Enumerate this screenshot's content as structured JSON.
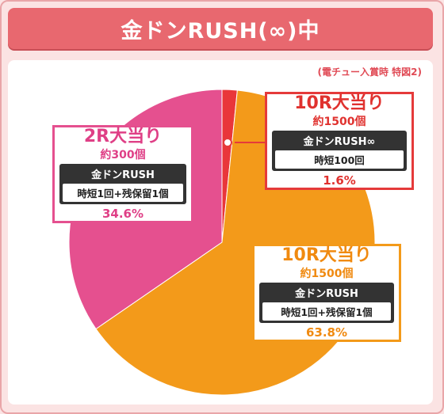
{
  "title": "金ドンRUSH(∞)中",
  "note": "(電チュー入賞時 特図2)",
  "chart_data": {
    "type": "pie",
    "start_angle_deg": 0,
    "direction": "clockwise",
    "slices": [
      {
        "id": "red",
        "label": "10R大当り",
        "value": 1.6,
        "color": "#e9363a"
      },
      {
        "id": "orange",
        "label": "10R大当り",
        "value": 63.8,
        "color": "#f39a1a"
      },
      {
        "id": "pink",
        "label": "2R大当り",
        "value": 34.6,
        "color": "#e5508f"
      }
    ]
  },
  "callouts": {
    "red": {
      "head": "10R大当り",
      "sub": "約1500個",
      "tag_top": "金ドンRUSH∞",
      "tag_bottom": "時短100回",
      "pct": "1.6%"
    },
    "orange": {
      "head": "10R大当り",
      "sub": "約1500個",
      "tag_top": "金ドンRUSH",
      "tag_bottom": "時短1回+残保留1個",
      "pct": "63.8%"
    },
    "pink": {
      "head": "2R大当り",
      "sub": "約300個",
      "tag_top": "金ドンRUSH",
      "tag_bottom": "時短1回+残保留1個",
      "pct": "34.6%"
    }
  }
}
